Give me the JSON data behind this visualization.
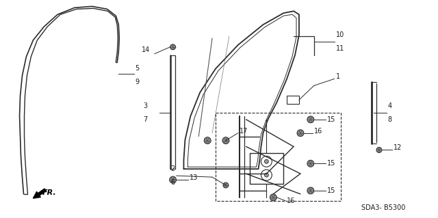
{
  "bg_color": "#ffffff",
  "line_color": "#2a2a2a",
  "text_color": "#1a1a1a",
  "diagram_code": "SDA3- B5300",
  "fig_width": 6.4,
  "fig_height": 3.19,
  "dpi": 100
}
